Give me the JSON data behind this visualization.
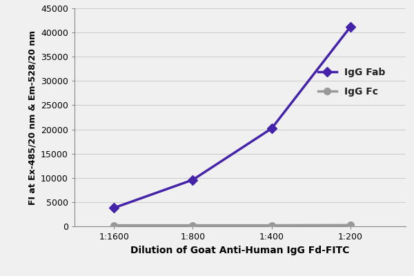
{
  "x_labels": [
    "1:1600",
    "1:800",
    "1:400",
    "1:200"
  ],
  "x_positions": [
    1,
    2,
    3,
    4
  ],
  "igg_fab_values": [
    3800,
    9600,
    20200,
    41200
  ],
  "igg_fc_values": [
    200,
    200,
    200,
    250
  ],
  "fab_color": "#4422aa",
  "fc_color": "#999999",
  "fab_label": "IgG Fab",
  "fc_label": "IgG Fc",
  "xlabel": "Dilution of Goat Anti-Human IgG Fd-FITC",
  "ylabel": "FI at Ex-485/20 nm & Em-528/20 nm",
  "ylim": [
    0,
    45000
  ],
  "yticks": [
    0,
    5000,
    10000,
    15000,
    20000,
    25000,
    30000,
    35000,
    40000,
    45000
  ],
  "grid_color": "#cccccc",
  "bg_color": "#f0f0f0",
  "plot_bg": "#f0f0f0",
  "marker_size": 7,
  "line_width": 2.5,
  "xlabel_fontsize": 10,
  "ylabel_fontsize": 9,
  "tick_fontsize": 9,
  "legend_fontsize": 10
}
